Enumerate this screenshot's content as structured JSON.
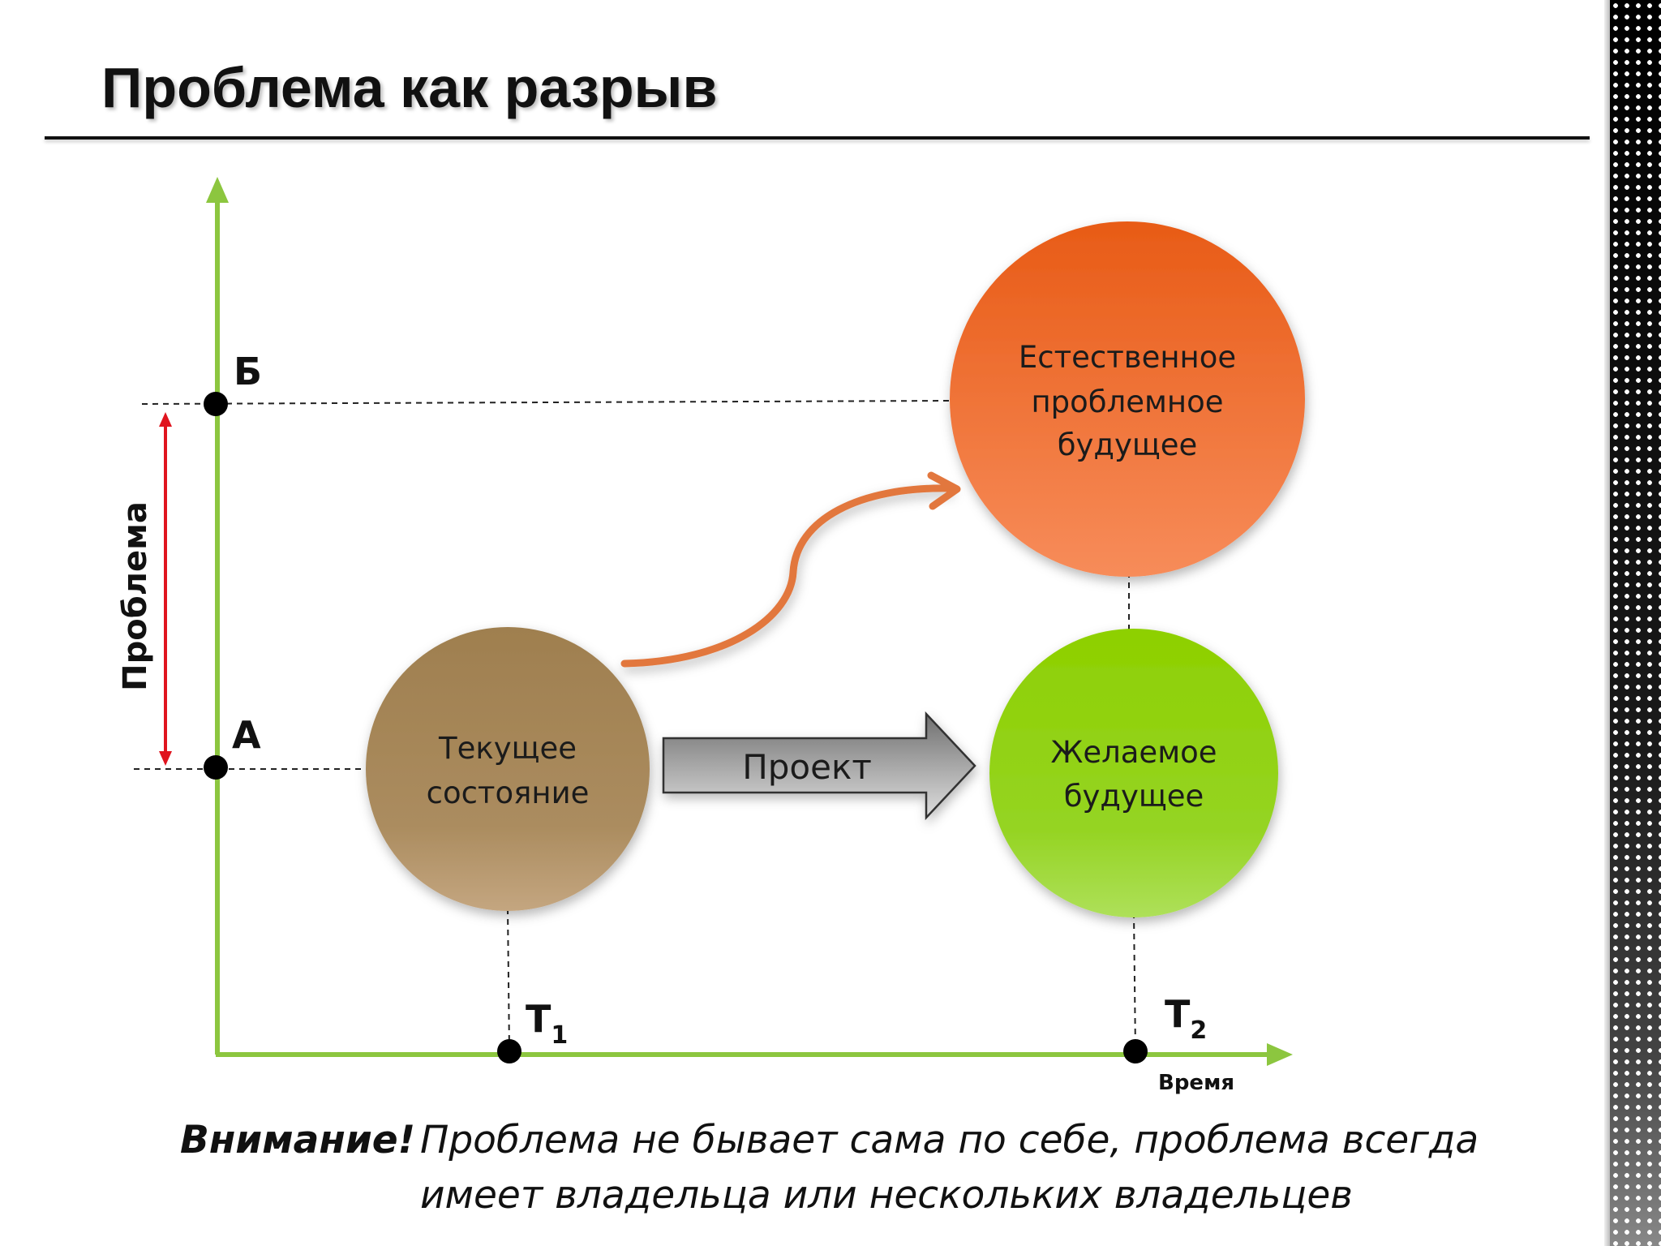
{
  "title": "Проблема как разрыв",
  "axes": {
    "y_label": "Проблема",
    "x_label": "Время"
  },
  "points": {
    "b": "Б",
    "a": "А",
    "t1_main": "T",
    "t1_sub": "1",
    "t2_main": "T",
    "t2_sub": "2"
  },
  "nodes": {
    "current": [
      "Текущее",
      "состояние"
    ],
    "natural": [
      "Естественное",
      "проблемное",
      "будущее"
    ],
    "desired": [
      "Желаемое",
      "будущее"
    ]
  },
  "project_arrow": "Проект",
  "footer": {
    "lead": "Внимание!",
    "line1": "Проблема не бывает сама по себе, проблема всегда",
    "line2": "имеет владельца или нескольких владельцев"
  },
  "colors": {
    "axis": "#8cc63f",
    "gap_arrow": "#e0141e",
    "curve_arrow": "#e2773e",
    "current_node": "#a5875a",
    "natural_node": "#ee6a2c",
    "desired_node": "#91d11e",
    "project_arrow": "#8e8e8e"
  }
}
